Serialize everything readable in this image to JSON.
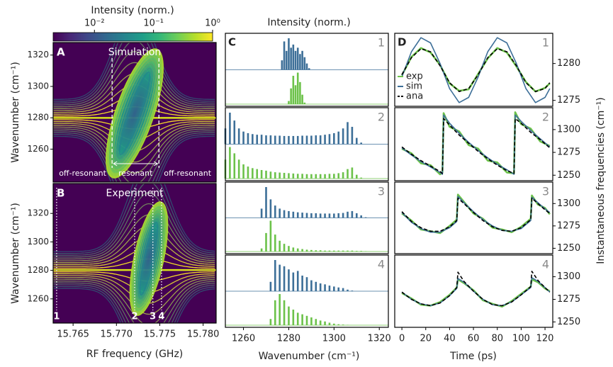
{
  "chart_data": [
    {
      "type": "heatmap",
      "panel": "A",
      "title": "Simulation",
      "ylabel": "Wavenumber (cm⁻¹)",
      "xlim": [
        15.7627,
        15.7815
      ],
      "ylim": [
        1239,
        1328
      ],
      "yticks": [
        1260,
        1280,
        1300,
        1320
      ],
      "colorbar": {
        "label": "Intensity (norm.)",
        "lim": [
          0.002,
          1
        ],
        "log": true,
        "ticks": [
          {
            "value": 0.01,
            "label": "10⁻²"
          },
          {
            "value": 0.1,
            "label": "10⁻¹"
          },
          {
            "value": 1,
            "label": "10⁰"
          }
        ]
      },
      "boundaries": [
        15.7695,
        15.7749
      ],
      "regions": [
        "off-resonant",
        "resonant",
        "off-resonant"
      ]
    },
    {
      "type": "heatmap",
      "panel": "B",
      "title": "Experiment",
      "ylabel": "Wavenumber (cm⁻¹)",
      "xlabel": "RF frequency (GHz)",
      "xlim": [
        15.7627,
        15.7815
      ],
      "ylim": [
        1243,
        1341
      ],
      "yticks": [
        1260,
        1280,
        1300,
        1320
      ],
      "xticks": [
        15.765,
        {
          "value": 15.77,
          "label": "15.770"
        },
        15.775,
        {
          "value": 15.78,
          "label": "15.780"
        }
      ],
      "markers": [
        {
          "value": 15.7631,
          "label": "1"
        },
        {
          "value": 15.7721,
          "label": "2"
        },
        {
          "value": 15.7742,
          "label": "3"
        },
        {
          "value": 15.7752,
          "label": "4"
        }
      ]
    },
    {
      "type": "spectrum",
      "panel": "C",
      "title": "Intensity (norm.)",
      "xlabel": "Wavenumber (cm⁻¹)",
      "xlim": [
        1252,
        1324
      ],
      "xticks": [
        1260,
        1280,
        1300,
        1320
      ],
      "subplots": [
        {
          "label": "1",
          "x": [
            1277,
            1278,
            1279,
            1280,
            1281,
            1282,
            1283,
            1284,
            1285,
            1286,
            1287,
            1288,
            1289
          ],
          "series": [
            {
              "color": "#3d6f98",
              "values": [
                0.3,
                0.9,
                0.6,
                1.0,
                0.7,
                0.8,
                0.6,
                0.7,
                0.5,
                0.6,
                0.4,
                0.2,
                0.05
              ]
            },
            {
              "color": "#6cc24a",
              "values": [
                0,
                0,
                0,
                0.1,
                0.5,
                0.9,
                0.6,
                1.0,
                0.7,
                0.3,
                0.05,
                0,
                0
              ]
            }
          ]
        },
        {
          "label": "2",
          "x": [
            1252,
            1254,
            1256,
            1258,
            1260,
            1262,
            1264,
            1266,
            1268,
            1270,
            1272,
            1274,
            1276,
            1278,
            1280,
            1282,
            1284,
            1286,
            1288,
            1290,
            1292,
            1294,
            1296,
            1298,
            1300,
            1302,
            1304,
            1306,
            1308,
            1310,
            1312
          ],
          "series": [
            {
              "color": "#3d6f98",
              "values": [
                0.5,
                1.0,
                0.75,
                0.5,
                0.4,
                0.35,
                0.32,
                0.3,
                0.3,
                0.28,
                0.28,
                0.27,
                0.27,
                0.26,
                0.26,
                0.26,
                0.26,
                0.27,
                0.27,
                0.27,
                0.28,
                0.28,
                0.3,
                0.32,
                0.35,
                0.4,
                0.5,
                0.7,
                0.55,
                0.2,
                0.05
              ]
            },
            {
              "color": "#6cc24a",
              "values": [
                0.6,
                1.0,
                0.8,
                0.6,
                0.45,
                0.38,
                0.33,
                0.3,
                0.27,
                0.25,
                0.22,
                0.2,
                0.19,
                0.18,
                0.17,
                0.16,
                0.15,
                0.15,
                0.14,
                0.14,
                0.14,
                0.14,
                0.14,
                0.15,
                0.15,
                0.17,
                0.2,
                0.3,
                0.35,
                0.12,
                0.03
              ]
            }
          ]
        },
        {
          "label": "3",
          "x": [
            1268,
            1270,
            1272,
            1274,
            1276,
            1278,
            1280,
            1282,
            1284,
            1286,
            1288,
            1290,
            1292,
            1294,
            1296,
            1298,
            1300,
            1302,
            1304,
            1306,
            1308,
            1310,
            1312,
            1314
          ],
          "series": [
            {
              "color": "#3d6f98",
              "values": [
                0.3,
                1.0,
                0.6,
                0.4,
                0.3,
                0.25,
                0.22,
                0.2,
                0.18,
                0.17,
                0.16,
                0.15,
                0.15,
                0.14,
                0.14,
                0.14,
                0.14,
                0.15,
                0.16,
                0.2,
                0.22,
                0.15,
                0.08,
                0.02
              ]
            },
            {
              "color": "#6cc24a",
              "values": [
                0.1,
                0.6,
                1.0,
                0.55,
                0.35,
                0.25,
                0.18,
                0.13,
                0.1,
                0.08,
                0.06,
                0.05,
                0.04,
                0.04,
                0.03,
                0.03,
                0.03,
                0.03,
                0.03,
                0.03,
                0.03,
                0.02,
                0.02,
                0.01
              ]
            }
          ]
        },
        {
          "label": "4",
          "x": [
            1272,
            1274,
            1276,
            1278,
            1280,
            1282,
            1284,
            1286,
            1288,
            1290,
            1292,
            1294,
            1296,
            1298,
            1300,
            1302,
            1304,
            1306,
            1308
          ],
          "series": [
            {
              "color": "#3d6f98",
              "values": [
                0.3,
                1.0,
                0.85,
                0.8,
                0.7,
                0.6,
                0.65,
                0.5,
                0.45,
                0.35,
                0.3,
                0.25,
                0.22,
                0.18,
                0.15,
                0.12,
                0.1,
                0.05,
                0.02
              ]
            },
            {
              "color": "#6cc24a",
              "values": [
                0.2,
                0.8,
                1.0,
                0.8,
                0.6,
                0.5,
                0.4,
                0.35,
                0.3,
                0.25,
                0.2,
                0.15,
                0.12,
                0.08,
                0.05,
                0.03,
                0.02,
                0.01,
                0
              ]
            }
          ]
        }
      ]
    },
    {
      "type": "line",
      "panel": "D",
      "xlabel": "Time (ps)",
      "ylabel": "Instantaneous frequencies (cm⁻¹)",
      "xlim": [
        -6,
        126.5
      ],
      "xticks": [
        0,
        20,
        40,
        60,
        80,
        100,
        120
      ],
      "legend": "lower left",
      "subplots": [
        {
          "label": "1",
          "ylim": [
            1274.2,
            1284.1
          ],
          "yticks": [
            1275,
            1280
          ],
          "x": [
            0,
            8,
            16,
            24,
            32,
            40,
            48,
            56,
            64,
            72,
            80,
            88,
            96,
            104,
            112,
            120,
            124
          ],
          "series": [
            {
              "name": "exp",
              "color": "#6cc24a",
              "values": [
                1278.4,
                1280.9,
                1282.1,
                1281.5,
                1279.8,
                1277.3,
                1276.3,
                1276.5,
                1278.6,
                1280.7,
                1282.1,
                1281.5,
                1279.6,
                1277.5,
                1276.2,
                1276.7,
                1277.3
              ]
            },
            {
              "name": "sim",
              "color": "#3d6f98",
              "values": [
                1278.2,
                1281.6,
                1283.5,
                1282.8,
                1280,
                1276.6,
                1274.7,
                1275.4,
                1278.2,
                1281.6,
                1283.5,
                1282.8,
                1280,
                1276.6,
                1274.7,
                1275.4,
                1276.6
              ]
            },
            {
              "name": "ana",
              "color": "#000000",
              "dash": true,
              "values": [
                1278.5,
                1280.8,
                1282,
                1281.6,
                1279.7,
                1277.4,
                1276.2,
                1276.6,
                1278.5,
                1280.8,
                1282,
                1281.6,
                1279.7,
                1277.4,
                1276.2,
                1276.6,
                1277.4
              ]
            }
          ]
        },
        {
          "label": "2",
          "ylim": [
            1244,
            1324
          ],
          "yticks": [
            1250,
            1275,
            1300
          ],
          "x": [
            0,
            8,
            16,
            24,
            32,
            34,
            35,
            40,
            48,
            56,
            64,
            72,
            80,
            88,
            94,
            95,
            100,
            108,
            116,
            124
          ],
          "series": [
            {
              "color": "#6cc24a",
              "values": [
                1279,
                1274,
                1263,
                1261,
                1251,
                1253,
                1318,
                1303,
                1298,
                1283,
                1279,
                1266,
                1264,
                1253,
                1252,
                1319,
                1306,
                1301,
                1287,
                1282
              ]
            },
            {
              "color": "#3d6f98",
              "values": [
                1280,
                1272,
                1265,
                1259,
                1253,
                1251,
                1316,
                1307,
                1296,
                1286,
                1277,
                1269,
                1262,
                1256,
                1251,
                1316,
                1309,
                1299,
                1290,
                1281
              ]
            },
            {
              "color": "#000000",
              "dash": true,
              "values": [
                1281,
                1273,
                1266,
                1260,
                1254,
                1252,
                1312,
                1305,
                1294,
                1285,
                1276,
                1268,
                1261,
                1255,
                1252,
                1312,
                1307,
                1297,
                1289,
                1280
              ]
            }
          ]
        },
        {
          "label": "3",
          "ylim": [
            1244,
            1324
          ],
          "yticks": [
            1250,
            1275,
            1300
          ],
          "x": [
            0,
            8,
            16,
            24,
            32,
            40,
            46,
            47,
            52,
            60,
            68,
            76,
            84,
            92,
            100,
            108,
            109,
            114,
            120,
            124
          ],
          "series": [
            {
              "color": "#6cc24a",
              "values": [
                1289,
                1281,
                1271,
                1269,
                1267,
                1275,
                1282,
                1310,
                1302,
                1289,
                1283,
                1273,
                1271,
                1268,
                1274,
                1283,
                1309,
                1299,
                1295,
                1288
              ]
            },
            {
              "color": "#3d6f98",
              "values": [
                1290,
                1279,
                1272,
                1268,
                1268,
                1273,
                1280,
                1308,
                1301,
                1291,
                1282,
                1275,
                1270,
                1269,
                1272,
                1281,
                1307,
                1301,
                1294,
                1290
              ]
            },
            {
              "color": "#000000",
              "dash": true,
              "values": [
                1291,
                1280,
                1273,
                1269,
                1269,
                1274,
                1281,
                1306,
                1300,
                1290,
                1281,
                1274,
                1270,
                1269,
                1273,
                1282,
                1306,
                1300,
                1293,
                1289
              ]
            }
          ]
        },
        {
          "label": "4",
          "ylim": [
            1244,
            1324
          ],
          "yticks": [
            1250,
            1275,
            1300
          ],
          "x": [
            0,
            8,
            16,
            24,
            32,
            40,
            46,
            47,
            52,
            60,
            68,
            76,
            84,
            92,
            100,
            108,
            109,
            114,
            120,
            124
          ],
          "series": [
            {
              "color": "#6cc24a",
              "values": [
                1282,
                1276,
                1269,
                1268,
                1272,
                1280,
                1288,
                1297,
                1293,
                1285,
                1274,
                1270,
                1267,
                1273,
                1281,
                1289,
                1297,
                1294,
                1287,
                1284
              ]
            },
            {
              "color": "#3d6f98",
              "values": [
                1283,
                1275,
                1270,
                1268,
                1271,
                1279,
                1287,
                1298,
                1294,
                1284,
                1275,
                1269,
                1268,
                1272,
                1280,
                1288,
                1299,
                1295,
                1288,
                1283
              ]
            },
            {
              "color": "#000000",
              "dash": true,
              "values": [
                1283,
                1275,
                1270,
                1268,
                1271,
                1279,
                1288,
                1305,
                1295,
                1284,
                1275,
                1269,
                1268,
                1272,
                1280,
                1289,
                1306,
                1296,
                1288,
                1283
              ]
            }
          ]
        }
      ]
    }
  ]
}
